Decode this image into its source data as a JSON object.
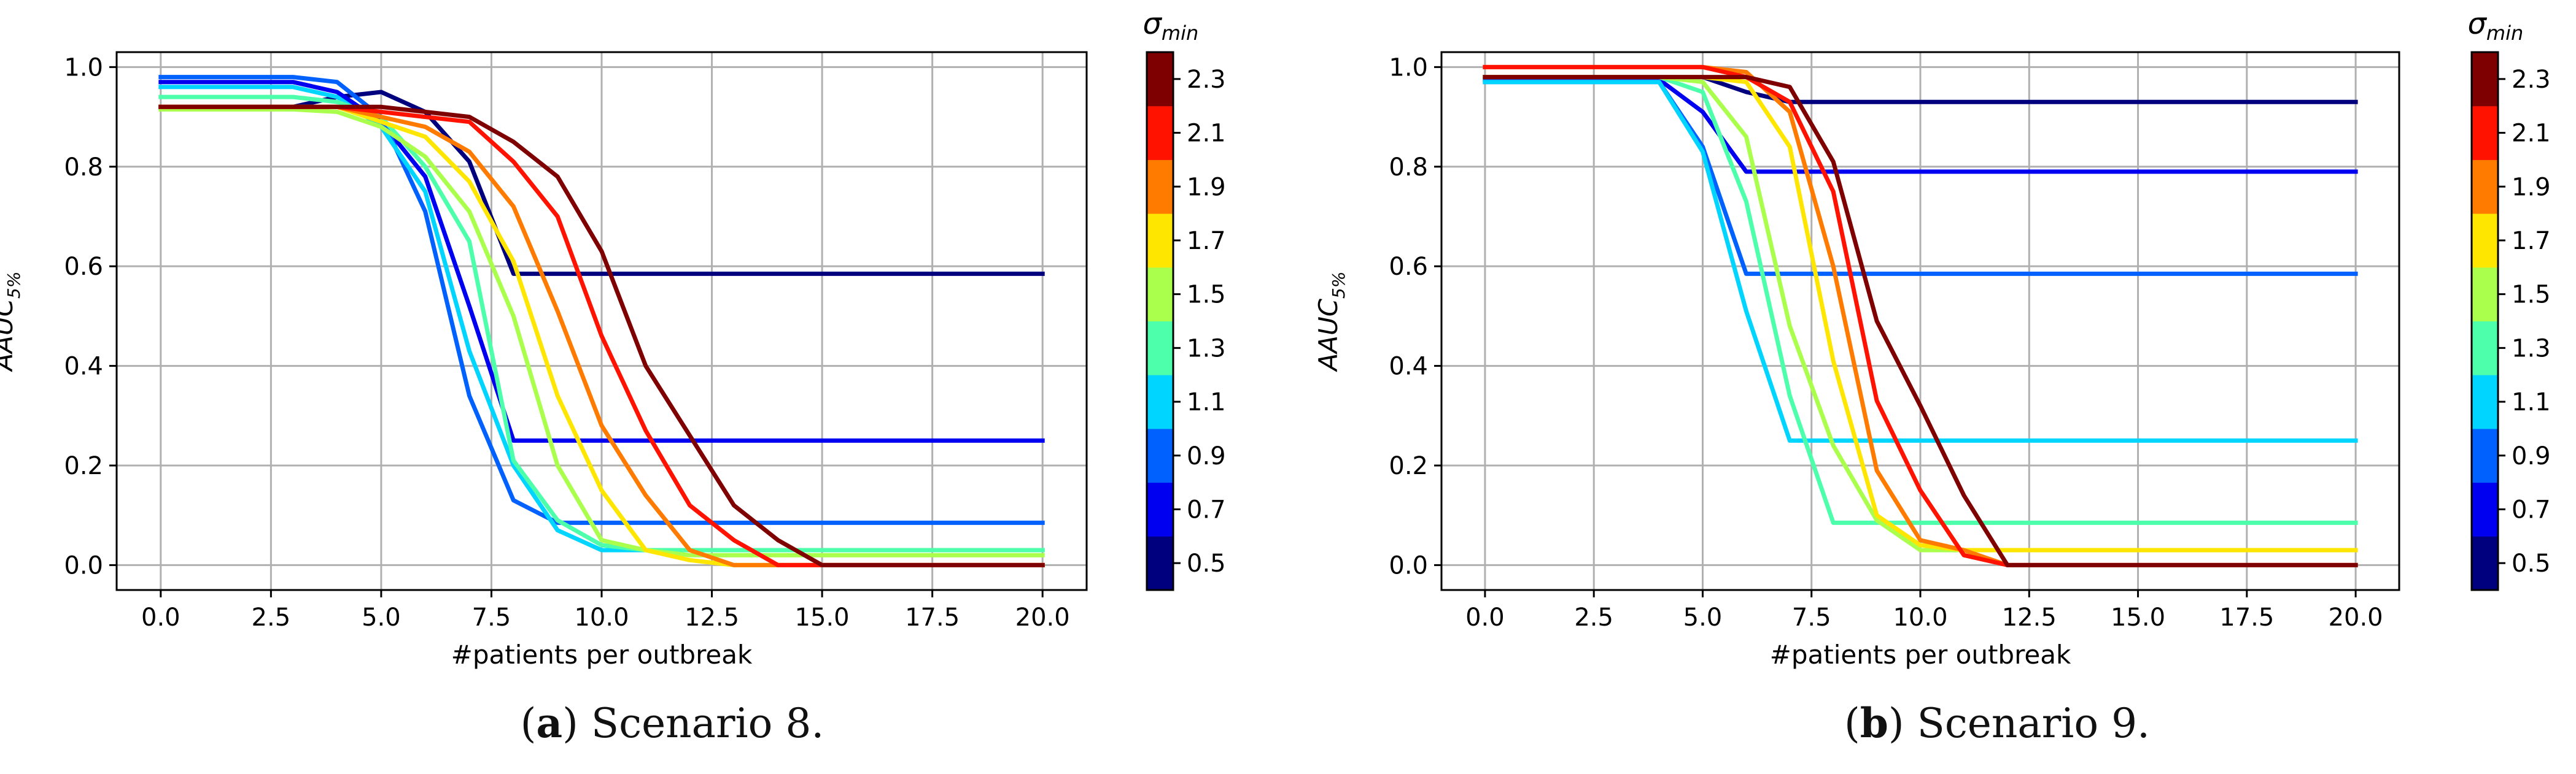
{
  "figure": {
    "captions": [
      {
        "label": "a",
        "text": "Scenario 8."
      },
      {
        "label": "b",
        "text": "Scenario 9."
      }
    ]
  },
  "colorbar": {
    "title_main": "σ",
    "title_sub": "min",
    "tick_labels": [
      "0.5",
      "0.7",
      "0.9",
      "1.1",
      "1.3",
      "1.5",
      "1.7",
      "1.9",
      "2.1",
      "2.3"
    ],
    "band_colors": [
      "#00007f",
      "#0000f1",
      "#0061ff",
      "#00d5ff",
      "#4dffaa",
      "#aaff4d",
      "#ffe600",
      "#ff7b00",
      "#ff1300",
      "#7f0000"
    ]
  },
  "chart_data": [
    {
      "type": "line",
      "xlabel": "#patients per outbreak",
      "ylabel_main": "AAUC",
      "ylabel_sub": "5%",
      "xlim": [
        -1.0,
        21.0
      ],
      "ylim": [
        -0.05,
        1.03
      ],
      "x_ticks": [
        "0.0",
        "2.5",
        "5.0",
        "7.5",
        "10.0",
        "12.5",
        "15.0",
        "17.5",
        "20.0"
      ],
      "y_ticks": [
        "0.0",
        "0.2",
        "0.4",
        "0.6",
        "0.8",
        "1.0"
      ],
      "grid": true,
      "x": [
        0,
        1,
        2,
        3,
        4,
        5,
        6,
        7,
        8,
        9,
        10,
        11,
        12,
        13,
        14,
        15,
        16,
        17,
        18,
        19,
        20
      ],
      "series": [
        {
          "sigma": 0.5,
          "color": "#00007f",
          "values": [
            0.92,
            0.92,
            0.92,
            0.92,
            0.94,
            0.95,
            0.91,
            0.81,
            0.585,
            0.585,
            0.585,
            0.585,
            0.585,
            0.585,
            0.585,
            0.585,
            0.585,
            0.585,
            0.585,
            0.585,
            0.585
          ]
        },
        {
          "sigma": 0.7,
          "color": "#0000f1",
          "values": [
            0.97,
            0.97,
            0.97,
            0.97,
            0.95,
            0.89,
            0.78,
            0.52,
            0.25,
            0.25,
            0.25,
            0.25,
            0.25,
            0.25,
            0.25,
            0.25,
            0.25,
            0.25,
            0.25,
            0.25,
            0.25
          ]
        },
        {
          "sigma": 0.9,
          "color": "#0061ff",
          "values": [
            0.98,
            0.98,
            0.98,
            0.98,
            0.97,
            0.9,
            0.71,
            0.34,
            0.13,
            0.085,
            0.085,
            0.085,
            0.085,
            0.085,
            0.085,
            0.085,
            0.085,
            0.085,
            0.085,
            0.085,
            0.085
          ]
        },
        {
          "sigma": 1.1,
          "color": "#00d5ff",
          "values": [
            0.96,
            0.96,
            0.96,
            0.96,
            0.94,
            0.88,
            0.75,
            0.43,
            0.2,
            0.07,
            0.03,
            0.03,
            0.03,
            0.03,
            0.03,
            0.03,
            0.03,
            0.03,
            0.03,
            0.03,
            0.03
          ]
        },
        {
          "sigma": 1.3,
          "color": "#4dffaa",
          "values": [
            0.94,
            0.94,
            0.94,
            0.94,
            0.93,
            0.9,
            0.8,
            0.65,
            0.21,
            0.09,
            0.04,
            0.03,
            0.03,
            0.03,
            0.03,
            0.03,
            0.03,
            0.03,
            0.03,
            0.03,
            0.03
          ]
        },
        {
          "sigma": 1.5,
          "color": "#aaff4d",
          "values": [
            0.915,
            0.915,
            0.915,
            0.915,
            0.91,
            0.88,
            0.82,
            0.71,
            0.5,
            0.2,
            0.05,
            0.03,
            0.02,
            0.02,
            0.02,
            0.02,
            0.02,
            0.02,
            0.02,
            0.02,
            0.02
          ]
        },
        {
          "sigma": 1.7,
          "color": "#ffe600",
          "values": [
            0.92,
            0.92,
            0.92,
            0.92,
            0.92,
            0.89,
            0.86,
            0.77,
            0.61,
            0.34,
            0.15,
            0.03,
            0.01,
            0.0,
            0.0,
            0.0,
            0.0,
            0.0,
            0.0,
            0.0,
            0.0
          ]
        },
        {
          "sigma": 1.9,
          "color": "#ff7b00",
          "values": [
            0.92,
            0.92,
            0.92,
            0.92,
            0.92,
            0.9,
            0.88,
            0.83,
            0.72,
            0.51,
            0.28,
            0.14,
            0.03,
            0.0,
            0.0,
            0.0,
            0.0,
            0.0,
            0.0,
            0.0,
            0.0
          ]
        },
        {
          "sigma": 2.1,
          "color": "#ff1300",
          "values": [
            0.92,
            0.92,
            0.92,
            0.92,
            0.92,
            0.91,
            0.9,
            0.89,
            0.81,
            0.7,
            0.46,
            0.27,
            0.12,
            0.05,
            0.0,
            0.0,
            0.0,
            0.0,
            0.0,
            0.0,
            0.0
          ]
        },
        {
          "sigma": 2.3,
          "color": "#7f0000",
          "values": [
            0.92,
            0.92,
            0.92,
            0.92,
            0.92,
            0.92,
            0.91,
            0.9,
            0.85,
            0.78,
            0.63,
            0.4,
            0.26,
            0.12,
            0.05,
            0.0,
            0.0,
            0.0,
            0.0,
            0.0,
            0.0
          ]
        }
      ]
    },
    {
      "type": "line",
      "xlabel": "#patients per outbreak",
      "ylabel_main": "AAUC",
      "ylabel_sub": "5%",
      "xlim": [
        -1.0,
        21.0
      ],
      "ylim": [
        -0.05,
        1.03
      ],
      "x_ticks": [
        "0.0",
        "2.5",
        "5.0",
        "7.5",
        "10.0",
        "12.5",
        "15.0",
        "17.5",
        "20.0"
      ],
      "y_ticks": [
        "0.0",
        "0.2",
        "0.4",
        "0.6",
        "0.8",
        "1.0"
      ],
      "grid": true,
      "x": [
        0,
        1,
        2,
        3,
        4,
        5,
        6,
        7,
        8,
        9,
        10,
        11,
        12,
        13,
        14,
        15,
        16,
        17,
        18,
        19,
        20
      ],
      "series": [
        {
          "sigma": 0.5,
          "color": "#00007f",
          "values": [
            0.98,
            0.98,
            0.98,
            0.98,
            0.98,
            0.98,
            0.95,
            0.93,
            0.93,
            0.93,
            0.93,
            0.93,
            0.93,
            0.93,
            0.93,
            0.93,
            0.93,
            0.93,
            0.93,
            0.93,
            0.93
          ]
        },
        {
          "sigma": 0.7,
          "color": "#0000f1",
          "values": [
            0.975,
            0.975,
            0.975,
            0.975,
            0.975,
            0.91,
            0.79,
            0.79,
            0.79,
            0.79,
            0.79,
            0.79,
            0.79,
            0.79,
            0.79,
            0.79,
            0.79,
            0.79,
            0.79,
            0.79,
            0.79
          ]
        },
        {
          "sigma": 0.9,
          "color": "#0061ff",
          "values": [
            0.97,
            0.97,
            0.97,
            0.97,
            0.97,
            0.84,
            0.585,
            0.585,
            0.585,
            0.585,
            0.585,
            0.585,
            0.585,
            0.585,
            0.585,
            0.585,
            0.585,
            0.585,
            0.585,
            0.585,
            0.585
          ]
        },
        {
          "sigma": 1.1,
          "color": "#00d5ff",
          "values": [
            0.97,
            0.97,
            0.97,
            0.97,
            0.97,
            0.83,
            0.51,
            0.25,
            0.25,
            0.25,
            0.25,
            0.25,
            0.25,
            0.25,
            0.25,
            0.25,
            0.25,
            0.25,
            0.25,
            0.25,
            0.25
          ]
        },
        {
          "sigma": 1.3,
          "color": "#4dffaa",
          "values": [
            0.98,
            0.98,
            0.98,
            0.98,
            0.98,
            0.95,
            0.73,
            0.34,
            0.085,
            0.085,
            0.085,
            0.085,
            0.085,
            0.085,
            0.085,
            0.085,
            0.085,
            0.085,
            0.085,
            0.085,
            0.085
          ]
        },
        {
          "sigma": 1.5,
          "color": "#aaff4d",
          "values": [
            0.98,
            0.98,
            0.98,
            0.98,
            0.98,
            0.97,
            0.86,
            0.48,
            0.24,
            0.09,
            0.03,
            0.03,
            0.03,
            0.03,
            0.03,
            0.03,
            0.03,
            0.03,
            0.03,
            0.03,
            0.03
          ]
        },
        {
          "sigma": 1.7,
          "color": "#ffe600",
          "values": [
            0.98,
            0.98,
            0.98,
            0.98,
            0.98,
            0.98,
            0.97,
            0.84,
            0.41,
            0.1,
            0.04,
            0.03,
            0.03,
            0.03,
            0.03,
            0.03,
            0.03,
            0.03,
            0.03,
            0.03,
            0.03
          ]
        },
        {
          "sigma": 1.9,
          "color": "#ff7b00",
          "values": [
            1.0,
            1.0,
            1.0,
            1.0,
            1.0,
            1.0,
            0.99,
            0.91,
            0.6,
            0.19,
            0.05,
            0.03,
            0.0,
            0.0,
            0.0,
            0.0,
            0.0,
            0.0,
            0.0,
            0.0,
            0.0
          ]
        },
        {
          "sigma": 2.1,
          "color": "#ff1300",
          "values": [
            1.0,
            1.0,
            1.0,
            1.0,
            1.0,
            1.0,
            0.98,
            0.93,
            0.75,
            0.33,
            0.15,
            0.02,
            0.0,
            0.0,
            0.0,
            0.0,
            0.0,
            0.0,
            0.0,
            0.0,
            0.0
          ]
        },
        {
          "sigma": 2.3,
          "color": "#7f0000",
          "values": [
            0.98,
            0.98,
            0.98,
            0.98,
            0.98,
            0.98,
            0.98,
            0.96,
            0.81,
            0.49,
            0.32,
            0.14,
            0.0,
            0.0,
            0.0,
            0.0,
            0.0,
            0.0,
            0.0,
            0.0,
            0.0
          ]
        }
      ]
    }
  ]
}
